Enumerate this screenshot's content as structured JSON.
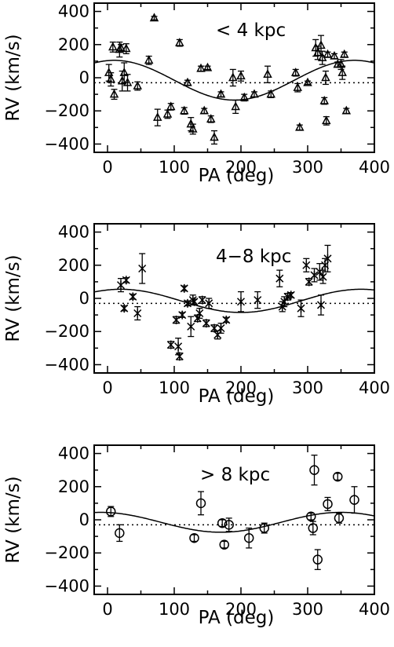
{
  "chart_data": [
    {
      "type": "scatter",
      "annotation": "< 4 kpc",
      "marker": "triangle",
      "xlabel": "PA (deg)",
      "ylabel": "RV (km/s)",
      "xlim": [
        -20,
        400
      ],
      "ylim": [
        -450,
        450
      ],
      "xticks": [
        "0",
        "100",
        "200",
        "300",
        "400"
      ],
      "yticks": [
        "−400",
        "−200",
        "0",
        "200",
        "400"
      ],
      "model_amplitude": 120,
      "model_peak_pa": 10,
      "model_offset": -15,
      "zero_line_y": -30,
      "points": [
        {
          "x": 2,
          "y": 30,
          "err": 50
        },
        {
          "x": 5,
          "y": -10,
          "err": 40
        },
        {
          "x": 8,
          "y": 185,
          "err": 30
        },
        {
          "x": 10,
          "y": -100,
          "err": 30
        },
        {
          "x": 18,
          "y": 170,
          "err": 45
        },
        {
          "x": 20,
          "y": 180,
          "err": 20
        },
        {
          "x": 22,
          "y": -20,
          "err": 60
        },
        {
          "x": 25,
          "y": 30,
          "err": 60
        },
        {
          "x": 28,
          "y": 175,
          "err": 30
        },
        {
          "x": 30,
          "y": -30,
          "err": 50
        },
        {
          "x": 45,
          "y": -50,
          "err": 25
        },
        {
          "x": 62,
          "y": 105,
          "err": 25
        },
        {
          "x": 70,
          "y": 360,
          "err": 10
        },
        {
          "x": 75,
          "y": -240,
          "err": 50
        },
        {
          "x": 90,
          "y": -220,
          "err": 25
        },
        {
          "x": 95,
          "y": -175,
          "err": 20
        },
        {
          "x": 108,
          "y": 210,
          "err": 20
        },
        {
          "x": 115,
          "y": -200,
          "err": 20
        },
        {
          "x": 120,
          "y": -30,
          "err": 15
        },
        {
          "x": 125,
          "y": -280,
          "err": 40
        },
        {
          "x": 128,
          "y": -310,
          "err": 30
        },
        {
          "x": 140,
          "y": 55,
          "err": 15
        },
        {
          "x": 145,
          "y": -200,
          "err": 15
        },
        {
          "x": 150,
          "y": 60,
          "err": 10
        },
        {
          "x": 155,
          "y": -250,
          "err": 20
        },
        {
          "x": 160,
          "y": -360,
          "err": 40
        },
        {
          "x": 170,
          "y": -100,
          "err": 15
        },
        {
          "x": 188,
          "y": 0,
          "err": 50
        },
        {
          "x": 192,
          "y": -175,
          "err": 40
        },
        {
          "x": 200,
          "y": 10,
          "err": 30
        },
        {
          "x": 205,
          "y": -120,
          "err": 20
        },
        {
          "x": 220,
          "y": -100,
          "err": 15
        },
        {
          "x": 240,
          "y": 20,
          "err": 50
        },
        {
          "x": 245,
          "y": -100,
          "err": 20
        },
        {
          "x": 282,
          "y": 30,
          "err": 20
        },
        {
          "x": 285,
          "y": -60,
          "err": 25
        },
        {
          "x": 288,
          "y": -300,
          "err": 15
        },
        {
          "x": 300,
          "y": -30,
          "err": 10
        },
        {
          "x": 312,
          "y": 180,
          "err": 50
        },
        {
          "x": 315,
          "y": 150,
          "err": 40
        },
        {
          "x": 320,
          "y": 195,
          "err": 60
        },
        {
          "x": 322,
          "y": 120,
          "err": 40
        },
        {
          "x": 325,
          "y": -140,
          "err": 20
        },
        {
          "x": 327,
          "y": 0,
          "err": 40
        },
        {
          "x": 328,
          "y": -260,
          "err": 25
        },
        {
          "x": 330,
          "y": 140,
          "err": 15
        },
        {
          "x": 340,
          "y": 130,
          "err": 15
        },
        {
          "x": 345,
          "y": 80,
          "err": 15
        },
        {
          "x": 350,
          "y": 80,
          "err": 30
        },
        {
          "x": 352,
          "y": 30,
          "err": 40
        },
        {
          "x": 355,
          "y": 140,
          "err": 15
        },
        {
          "x": 358,
          "y": -200,
          "err": 15
        }
      ]
    },
    {
      "type": "scatter",
      "annotation": "4−8 kpc",
      "marker": "asterisk",
      "xlabel": "PA (deg)",
      "ylabel": "RV (km/s)",
      "xlim": [
        -20,
        400
      ],
      "ylim": [
        -450,
        450
      ],
      "xticks": [
        "0",
        "100",
        "200",
        "300",
        "400"
      ],
      "yticks": [
        "−400",
        "−200",
        "0",
        "200",
        "400"
      ],
      "model_amplitude": 70,
      "model_peak_pa": 20,
      "model_offset": -15,
      "zero_line_y": -30,
      "points": [
        {
          "x": 20,
          "y": 80,
          "err": 40
        },
        {
          "x": 25,
          "y": -60,
          "err": 15
        },
        {
          "x": 28,
          "y": 110,
          "err": 15
        },
        {
          "x": 38,
          "y": 10,
          "err": 15
        },
        {
          "x": 45,
          "y": -90,
          "err": 40
        },
        {
          "x": 52,
          "y": 180,
          "err": 90
        },
        {
          "x": 95,
          "y": -280,
          "err": 20
        },
        {
          "x": 103,
          "y": -130,
          "err": 20
        },
        {
          "x": 106,
          "y": -290,
          "err": 50
        },
        {
          "x": 108,
          "y": -350,
          "err": 20
        },
        {
          "x": 112,
          "y": -100,
          "err": 15
        },
        {
          "x": 115,
          "y": 60,
          "err": 15
        },
        {
          "x": 120,
          "y": -30,
          "err": 15
        },
        {
          "x": 125,
          "y": -170,
          "err": 60
        },
        {
          "x": 128,
          "y": -10,
          "err": 30
        },
        {
          "x": 130,
          "y": -20,
          "err": 15
        },
        {
          "x": 135,
          "y": -120,
          "err": 20
        },
        {
          "x": 138,
          "y": -90,
          "err": 30
        },
        {
          "x": 142,
          "y": -10,
          "err": 20
        },
        {
          "x": 148,
          "y": -150,
          "err": 20
        },
        {
          "x": 152,
          "y": -30,
          "err": 30
        },
        {
          "x": 160,
          "y": -180,
          "err": 20
        },
        {
          "x": 165,
          "y": -220,
          "err": 25
        },
        {
          "x": 170,
          "y": -180,
          "err": 30
        },
        {
          "x": 178,
          "y": -130,
          "err": 15
        },
        {
          "x": 200,
          "y": -20,
          "err": 60
        },
        {
          "x": 225,
          "y": -10,
          "err": 50
        },
        {
          "x": 258,
          "y": 120,
          "err": 50
        },
        {
          "x": 262,
          "y": -50,
          "err": 30
        },
        {
          "x": 265,
          "y": -20,
          "err": 30
        },
        {
          "x": 270,
          "y": 10,
          "err": 20
        },
        {
          "x": 275,
          "y": 20,
          "err": 15
        },
        {
          "x": 290,
          "y": -60,
          "err": 50
        },
        {
          "x": 298,
          "y": 200,
          "err": 40
        },
        {
          "x": 302,
          "y": 100,
          "err": 20
        },
        {
          "x": 310,
          "y": 140,
          "err": 40
        },
        {
          "x": 318,
          "y": 160,
          "err": 50
        },
        {
          "x": 320,
          "y": -40,
          "err": 60
        },
        {
          "x": 323,
          "y": 130,
          "err": 40
        },
        {
          "x": 326,
          "y": 200,
          "err": 40
        },
        {
          "x": 330,
          "y": 240,
          "err": 80
        }
      ]
    },
    {
      "type": "scatter",
      "annotation": "> 8 kpc",
      "marker": "circle",
      "xlabel": "PA (deg)",
      "ylabel": "RV (km/s)",
      "xlim": [
        -20,
        400
      ],
      "ylim": [
        -450,
        450
      ],
      "xticks": [
        "0",
        "100",
        "200",
        "300",
        "400"
      ],
      "yticks": [
        "−400",
        "−200",
        "0",
        "200",
        "400"
      ],
      "model_amplitude": 60,
      "model_peak_pa": 350,
      "model_offset": -15,
      "zero_line_y": -30,
      "points": [
        {
          "x": 5,
          "y": 50,
          "err": 30
        },
        {
          "x": 18,
          "y": -80,
          "err": 50
        },
        {
          "x": 130,
          "y": -110,
          "err": 20
        },
        {
          "x": 140,
          "y": 100,
          "err": 70
        },
        {
          "x": 172,
          "y": -20,
          "err": 20
        },
        {
          "x": 175,
          "y": -150,
          "err": 20
        },
        {
          "x": 182,
          "y": -30,
          "err": 40
        },
        {
          "x": 212,
          "y": -110,
          "err": 60
        },
        {
          "x": 235,
          "y": -50,
          "err": 30
        },
        {
          "x": 305,
          "y": 20,
          "err": 20
        },
        {
          "x": 308,
          "y": -50,
          "err": 40
        },
        {
          "x": 310,
          "y": 300,
          "err": 90
        },
        {
          "x": 315,
          "y": -240,
          "err": 60
        },
        {
          "x": 330,
          "y": 95,
          "err": 40
        },
        {
          "x": 345,
          "y": 260,
          "err": 20
        },
        {
          "x": 347,
          "y": 10,
          "err": 30
        },
        {
          "x": 370,
          "y": 120,
          "err": 80
        }
      ]
    }
  ]
}
